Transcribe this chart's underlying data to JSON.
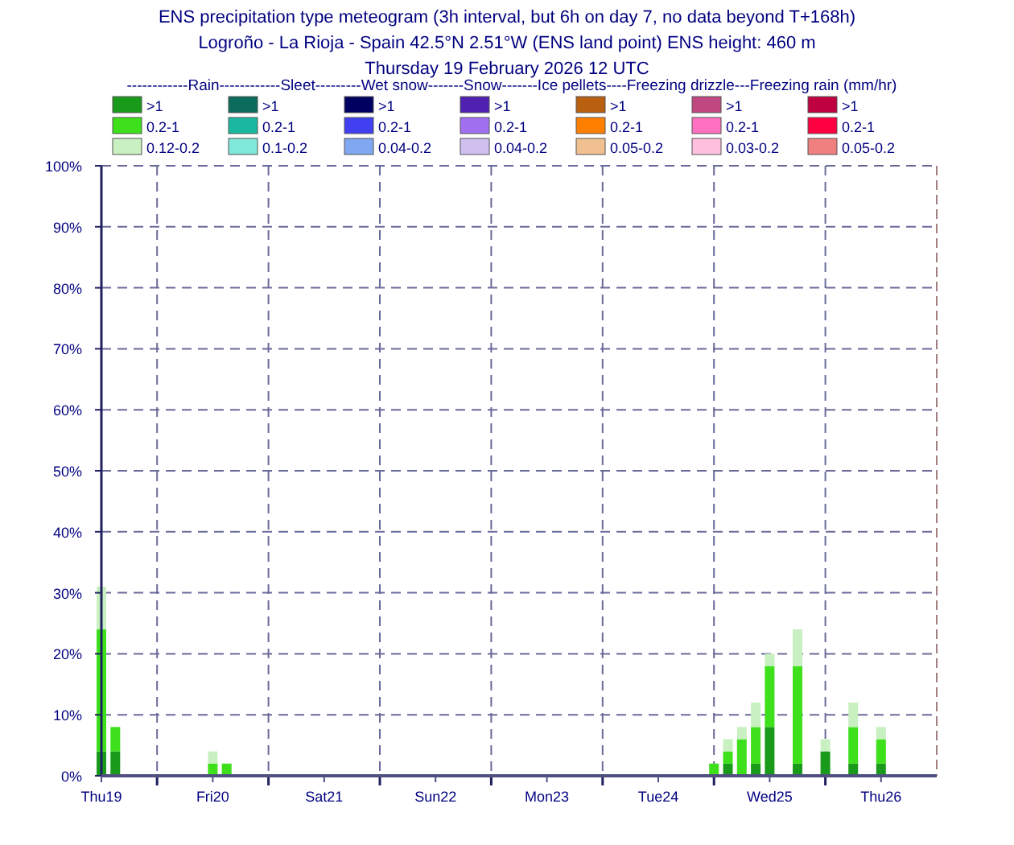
{
  "chart_data": {
    "type": "bar",
    "stacked": true,
    "title": "ENS precipitation type meteogram (3h interval, but 6h on day 7, no data beyond T+168h)",
    "subtitle": "Logroño - La Rioja - Spain 42.5°N 2.51°W (ENS land point) ENS height: 460 m",
    "annotations": [
      "Thursday 19 February 2026 12 UTC"
    ],
    "legend_title": "------------Rain------------Sleet---------Wet snow-------Snow-------Ice pellets----Freezing drizzle---Freezing rain (mm/hr)",
    "legend": "top",
    "x": [
      "2026-02-19T12:00",
      "2026-02-19T15:00",
      "2026-02-20T12:00",
      "2026-02-20T15:00",
      "2026-02-25T00:00",
      "2026-02-25T03:00",
      "2026-02-25T06:00",
      "2026-02-25T09:00",
      "2026-02-25T12:00",
      "2026-02-25T18:00",
      "2026-02-26T00:00",
      "2026-02-26T06:00",
      "2026-02-26T12:00"
    ],
    "series": [
      {
        "name": ">1",
        "color": "#1a9a1a",
        "values": [
          4,
          4,
          0,
          0,
          0,
          2,
          0,
          2,
          8,
          2,
          4,
          2,
          2
        ]
      },
      {
        "name": "0.2-1",
        "color": "#3de01a",
        "values": [
          20,
          4,
          2,
          2,
          2,
          2,
          6,
          6,
          10,
          16,
          0,
          6,
          4
        ]
      },
      {
        "name": "0.12-0.2",
        "color": "#c8f0c0",
        "values": [
          7,
          0,
          2,
          0,
          0,
          2,
          2,
          4,
          2,
          6,
          2,
          4,
          2
        ]
      },
      {
        "name": ">1",
        "color": "#0b6b5c",
        "values": [
          0,
          0,
          0,
          0,
          0,
          0,
          0,
          0,
          0,
          0,
          0,
          0,
          0
        ]
      },
      {
        "name": "0.2-1",
        "color": "#1ab8a0",
        "values": [
          0,
          0,
          0,
          0,
          0,
          0,
          0,
          0,
          0,
          0,
          0,
          0,
          0
        ]
      },
      {
        "name": "0.1-0.2",
        "color": "#80e8d8",
        "values": [
          0,
          0,
          0,
          0,
          0,
          0,
          0,
          0,
          0,
          0,
          0,
          0,
          0
        ]
      },
      {
        "name": ">1",
        "color": "#000060",
        "values": [
          0,
          0,
          0,
          0,
          0,
          0,
          0,
          0,
          0,
          0,
          0,
          0,
          0
        ]
      },
      {
        "name": "0.2-1",
        "color": "#4040f0",
        "values": [
          0,
          0,
          0,
          0,
          0,
          0,
          0,
          0,
          0,
          0,
          0,
          0,
          0
        ]
      },
      {
        "name": "0.04-0.2",
        "color": "#80a8f0",
        "values": [
          0,
          0,
          0,
          0,
          0,
          0,
          0,
          0,
          0,
          0,
          0,
          0,
          0
        ]
      },
      {
        "name": ">1",
        "color": "#5020b0",
        "values": [
          0,
          0,
          0,
          0,
          0,
          0,
          0,
          0,
          0,
          0,
          0,
          0,
          0
        ]
      },
      {
        "name": "0.2-1",
        "color": "#a070f0",
        "values": [
          0,
          0,
          0,
          0,
          0,
          0,
          0,
          0,
          0,
          0,
          0,
          0,
          0
        ]
      },
      {
        "name": "0.04-0.2",
        "color": "#d0c0f0",
        "values": [
          0,
          0,
          0,
          0,
          0,
          0,
          0,
          0,
          0,
          0,
          0,
          0,
          0
        ]
      },
      {
        "name": ">1",
        "color": "#b86010",
        "values": [
          0,
          0,
          0,
          0,
          0,
          0,
          0,
          0,
          0,
          0,
          0,
          0,
          0
        ]
      },
      {
        "name": "0.2-1",
        "color": "#ff8000",
        "values": [
          0,
          0,
          0,
          0,
          0,
          0,
          0,
          0,
          0,
          0,
          0,
          0,
          0
        ]
      },
      {
        "name": "0.05-0.2",
        "color": "#f0c090",
        "values": [
          0,
          0,
          0,
          0,
          0,
          0,
          0,
          0,
          0,
          0,
          0,
          0,
          0
        ]
      },
      {
        "name": ">1",
        "color": "#c04880",
        "values": [
          0,
          0,
          0,
          0,
          0,
          0,
          0,
          0,
          0,
          0,
          0,
          0,
          0
        ]
      },
      {
        "name": "0.2-1",
        "color": "#ff70c0",
        "values": [
          0,
          0,
          0,
          0,
          0,
          0,
          0,
          0,
          0,
          0,
          0,
          0,
          0
        ]
      },
      {
        "name": "0.03-0.2",
        "color": "#ffc0e0",
        "values": [
          0,
          0,
          0,
          0,
          0,
          0,
          0,
          0,
          0,
          0,
          0,
          0,
          0
        ]
      },
      {
        "name": ">1",
        "color": "#c00040",
        "values": [
          0,
          0,
          0,
          0,
          0,
          0,
          0,
          0,
          0,
          0,
          0,
          0,
          0
        ]
      },
      {
        "name": "0.2-1",
        "color": "#ff0040",
        "values": [
          0,
          0,
          0,
          0,
          0,
          0,
          0,
          0,
          0,
          0,
          0,
          0,
          0
        ]
      },
      {
        "name": "0.05-0.2",
        "color": "#f08080",
        "values": [
          0,
          0,
          0,
          0,
          0,
          0,
          0,
          0,
          0,
          0,
          0,
          0,
          0
        ]
      }
    ],
    "xlim": [
      "2026-02-19T12:00",
      "2026-02-27T00:00"
    ],
    "xticks": [
      {
        "value": "2026-02-19T12:00",
        "label": "Thu19"
      },
      {
        "value": "2026-02-20T12:00",
        "label": "Fri20"
      },
      {
        "value": "2026-02-21T12:00",
        "label": "Sat21"
      },
      {
        "value": "2026-02-22T12:00",
        "label": "Sun22"
      },
      {
        "value": "2026-02-23T12:00",
        "label": "Mon23"
      },
      {
        "value": "2026-02-24T12:00",
        "label": "Tue24"
      },
      {
        "value": "2026-02-25T12:00",
        "label": "Wed25"
      },
      {
        "value": "2026-02-26T12:00",
        "label": "Thu26"
      }
    ],
    "ylim": [
      0,
      100
    ],
    "yticks": [
      {
        "value": 0,
        "label": "0%"
      },
      {
        "value": 10,
        "label": "10%"
      },
      {
        "value": 20,
        "label": "20%"
      },
      {
        "value": 30,
        "label": "30%"
      },
      {
        "value": 40,
        "label": "40%"
      },
      {
        "value": 50,
        "label": "50%"
      },
      {
        "value": 60,
        "label": "60%"
      },
      {
        "value": 70,
        "label": "70%"
      },
      {
        "value": 80,
        "label": "80%"
      },
      {
        "value": 90,
        "label": "90%"
      },
      {
        "value": 100,
        "label": "100%"
      }
    ],
    "grid": "y",
    "ref_lines": [
      {
        "axis": "x",
        "value": "2026-02-20T00:00"
      },
      {
        "axis": "x",
        "value": "2026-02-21T00:00"
      },
      {
        "axis": "x",
        "value": "2026-02-22T00:00"
      },
      {
        "axis": "x",
        "value": "2026-02-23T00:00"
      },
      {
        "axis": "x",
        "value": "2026-02-24T00:00"
      },
      {
        "axis": "x",
        "value": "2026-02-25T00:00"
      },
      {
        "axis": "x",
        "value": "2026-02-26T00:00"
      }
    ]
  }
}
